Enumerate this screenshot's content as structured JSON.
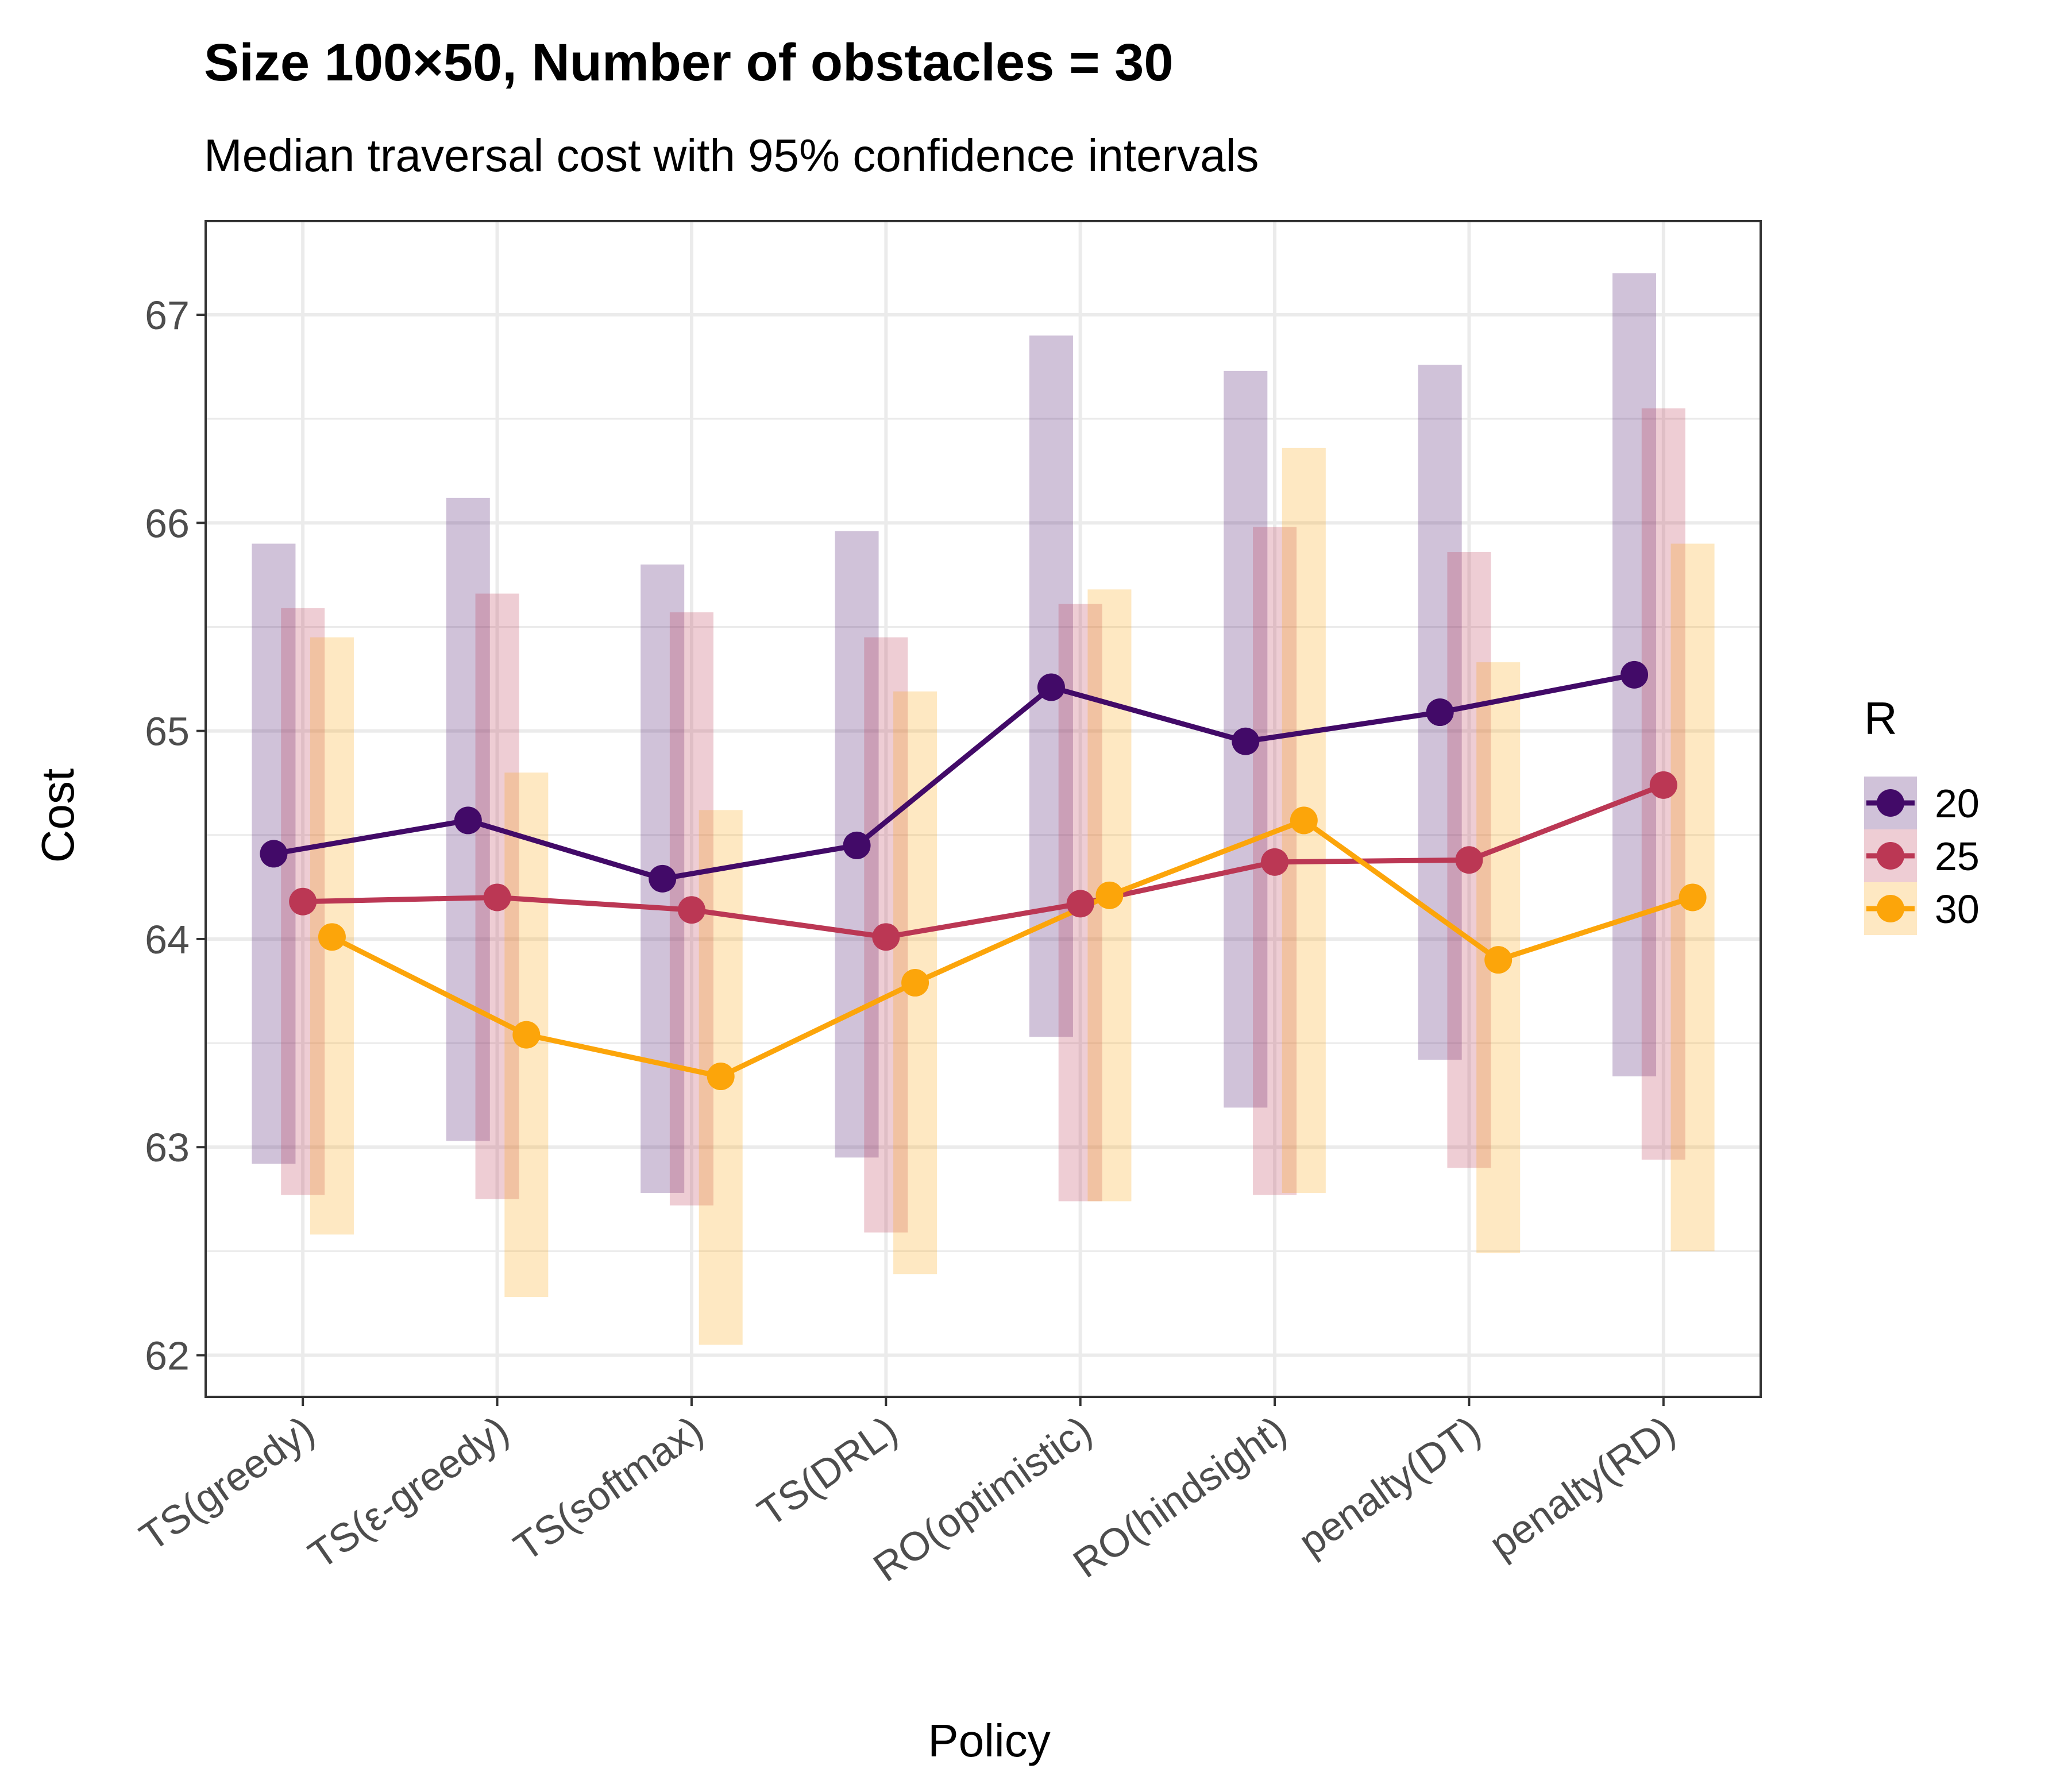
{
  "chart_data": {
    "type": "line",
    "title": "Size 100×50, Number of obstacles = 30",
    "subtitle": "Median traversal cost with 95% confidence intervals",
    "xlabel": "Policy",
    "ylabel": "Cost",
    "ylim": [
      61.8,
      67.45
    ],
    "yticks": [
      62,
      63,
      64,
      65,
      66,
      67
    ],
    "ytick_labels": [
      "62",
      "63",
      "64",
      "65",
      "66",
      "67"
    ],
    "grid": true,
    "categories": [
      "TS(greedy)",
      "TS(ε-greedy)",
      "TS(softmax)",
      "TS(DRL)",
      "RO(optimistic)",
      "RO(hindsight)",
      "penalty(DT)",
      "penalty(RD)"
    ],
    "legend": {
      "title": "R",
      "position": "right"
    },
    "series": [
      {
        "name": "20",
        "color": "#420a68",
        "values": [
          64.41,
          64.57,
          64.29,
          64.45,
          65.21,
          64.95,
          65.09,
          65.27
        ],
        "ci_low": [
          62.92,
          63.03,
          62.78,
          62.95,
          63.53,
          63.19,
          63.42,
          63.34
        ],
        "ci_high": [
          65.9,
          66.12,
          65.8,
          65.96,
          66.9,
          66.73,
          66.76,
          67.2
        ]
      },
      {
        "name": "25",
        "color": "#bb3754",
        "values": [
          64.18,
          64.2,
          64.14,
          64.01,
          64.17,
          64.37,
          64.38,
          64.74
        ],
        "ci_low": [
          62.77,
          62.75,
          62.72,
          62.59,
          62.74,
          62.77,
          62.9,
          62.94
        ],
        "ci_high": [
          65.59,
          65.66,
          65.57,
          65.45,
          65.61,
          65.98,
          65.86,
          66.55
        ]
      },
      {
        "name": "30",
        "color": "#fca50a",
        "values": [
          64.01,
          63.54,
          63.34,
          63.79,
          64.21,
          64.57,
          63.9,
          64.2
        ],
        "ci_low": [
          62.58,
          62.28,
          62.05,
          62.39,
          62.74,
          62.78,
          62.49,
          62.5
        ],
        "ci_high": [
          65.45,
          64.8,
          64.62,
          65.19,
          65.68,
          66.36,
          65.33,
          65.9
        ]
      }
    ]
  }
}
